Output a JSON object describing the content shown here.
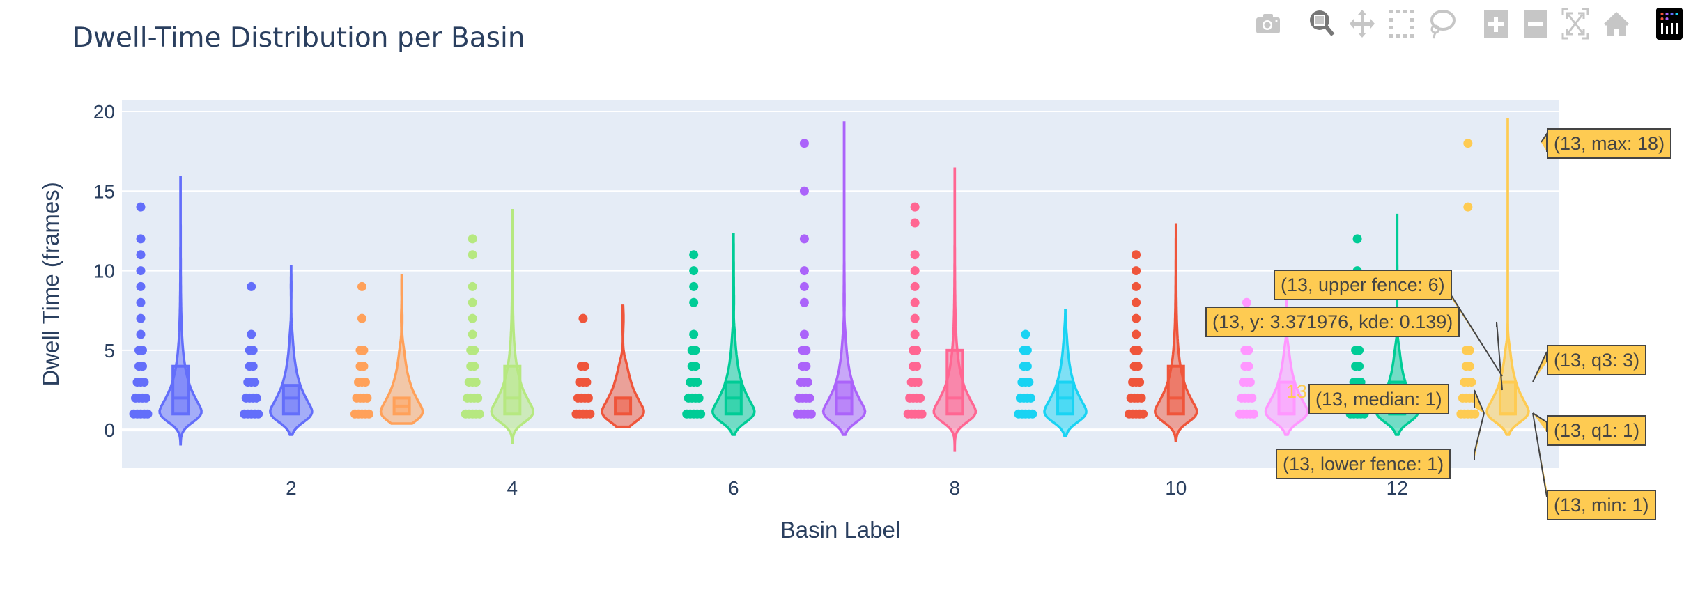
{
  "modebar": [
    {
      "name": "camera-icon",
      "label": "Download plot as a png"
    },
    {
      "name": "zoom-icon",
      "label": "Zoom",
      "active": true
    },
    {
      "name": "pan-icon",
      "label": "Pan"
    },
    {
      "name": "box-select-icon",
      "label": "Box Select"
    },
    {
      "name": "lasso-select-icon",
      "label": "Lasso Select"
    },
    {
      "name": "zoom-in-icon",
      "label": "Zoom in"
    },
    {
      "name": "zoom-out-icon",
      "label": "Zoom out"
    },
    {
      "name": "autoscale-icon",
      "label": "Autoscale"
    },
    {
      "name": "reset-axes-icon",
      "label": "Reset axes"
    },
    {
      "name": "plotly-logo-icon",
      "label": "Produced with Plotly"
    }
  ],
  "chart_data": {
    "type": "violin",
    "title": "Dwell-Time Distribution per Basin",
    "xlabel": "Basin Label",
    "ylabel": "Dwell Time (frames)",
    "xlim": [
      0.47,
      13.46
    ],
    "ylim": [
      -2.4,
      20.7
    ],
    "xticks": [
      2,
      4,
      6,
      8,
      10,
      12
    ],
    "yticks": [
      0,
      5,
      10,
      15,
      20
    ],
    "grid": true,
    "legend": "none",
    "series": [
      {
        "x": 1,
        "color": "#636efa",
        "points": [
          1,
          2,
          3,
          4,
          5,
          6,
          7,
          8,
          9,
          10,
          11,
          12,
          14
        ],
        "box": [
          1,
          2,
          4
        ],
        "violin_range": [
          -0.9,
          15.9
        ]
      },
      {
        "x": 2,
        "color": "#636efa",
        "points": [
          1,
          2,
          3,
          4,
          5,
          6,
          9
        ],
        "box": [
          1,
          2,
          2.8
        ],
        "violin_range": [
          -0.3,
          10.3
        ]
      },
      {
        "x": 3,
        "color": "#ffa15a",
        "points": [
          1,
          2,
          3,
          4,
          5,
          7,
          9
        ],
        "box": [
          1,
          1.5,
          2
        ],
        "violin_range": [
          0.4,
          9.7
        ]
      },
      {
        "x": 4,
        "color": "#b6e880",
        "points": [
          1,
          2,
          3,
          4,
          5,
          6,
          7,
          8,
          9,
          11,
          12
        ],
        "box": [
          1,
          2,
          4
        ],
        "violin_range": [
          -0.8,
          13.8
        ]
      },
      {
        "x": 5,
        "color": "#ef553b",
        "points": [
          1,
          2,
          3,
          4,
          7
        ],
        "box": [
          1,
          2,
          2
        ],
        "violin_range": [
          0.2,
          7.8
        ]
      },
      {
        "x": 6,
        "color": "#00cc96",
        "points": [
          1,
          2,
          3,
          4,
          5,
          6,
          8,
          9,
          10,
          11
        ],
        "box": [
          1,
          2,
          3
        ],
        "violin_range": [
          -0.3,
          12.3
        ]
      },
      {
        "x": 7,
        "color": "#ab63fa",
        "points": [
          1,
          2,
          3,
          4,
          5,
          6,
          8,
          9,
          10,
          12,
          15,
          18
        ],
        "box": [
          1,
          2,
          3
        ],
        "violin_range": [
          -0.3,
          19.3
        ]
      },
      {
        "x": 8,
        "color": "#ff6692",
        "points": [
          1,
          2,
          3,
          4,
          5,
          6,
          7,
          8,
          9,
          10,
          11,
          13,
          14
        ],
        "box": [
          1,
          2,
          5
        ],
        "violin_range": [
          -1.3,
          16.4
        ]
      },
      {
        "x": 9,
        "color": "#19d3f3",
        "points": [
          1,
          2,
          3,
          4,
          5,
          6
        ],
        "box": [
          1,
          2,
          3
        ],
        "violin_range": [
          -0.4,
          7.5
        ]
      },
      {
        "x": 10,
        "color": "#ef553b",
        "points": [
          1,
          2,
          3,
          4,
          5,
          6,
          7,
          8,
          9,
          10,
          11
        ],
        "box": [
          1,
          2,
          4
        ],
        "violin_range": [
          -0.7,
          12.9
        ]
      },
      {
        "x": 11,
        "color": "#ff97ff",
        "points": [
          1,
          2,
          3,
          4,
          5,
          8
        ],
        "box": [
          1,
          1,
          3
        ],
        "violin_range": [
          -0.3,
          9
        ]
      },
      {
        "x": 12,
        "color": "#00cc96",
        "points": [
          1,
          2,
          3,
          4,
          5,
          10,
          12
        ],
        "box": [
          1,
          1,
          3
        ],
        "violin_range": [
          -0.3,
          13.5
        ]
      },
      {
        "x": 13,
        "color": "#fecb52",
        "points": [
          1,
          2,
          3,
          4,
          5,
          14,
          18
        ],
        "box": [
          1,
          1,
          3
        ],
        "violin_range": [
          -0.3,
          19.5
        ]
      }
    ],
    "hover": {
      "trace_label": "13",
      "max": "(13, max: 18)",
      "q3": "(13, q3: 3)",
      "q1": "(13, q1: 1)",
      "min": "(13, min: 1)",
      "upper_fence": "(13, upper fence: 6)",
      "kde": "(13, y: 3.371976, kde: 0.139)",
      "median": "(13, median: 1)",
      "lower_fence": "(13, lower fence: 1)",
      "color": "#fecb52"
    }
  }
}
